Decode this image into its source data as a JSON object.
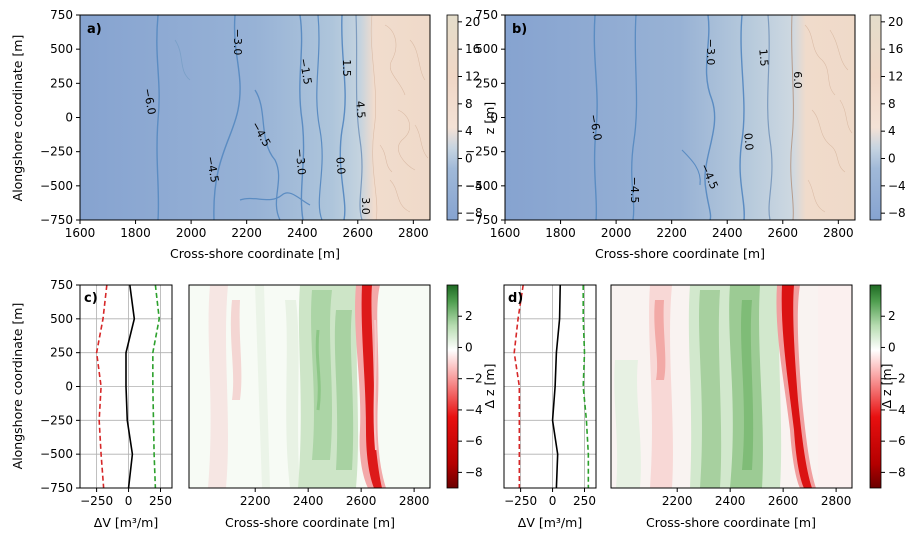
{
  "chart_data": [
    {
      "panel": "a)",
      "type": "heatmap",
      "subtype": "filled-contour bathymetry map",
      "xlabel": "Cross-shore coordinate [m]",
      "ylabel": "Alongshore coordinate [m]",
      "xlim": [
        1600,
        2860
      ],
      "ylim": [
        -750,
        750
      ],
      "xticks": [
        "1600",
        "1800",
        "2000",
        "2200",
        "2400",
        "2600",
        "2800"
      ],
      "yticks": [
        "750",
        "500",
        "250",
        "0",
        "−250",
        "−500",
        "−750"
      ],
      "colorbar": {
        "label": "z [m]",
        "ticks": [
          "20",
          "16",
          "12",
          "8",
          "4",
          "0",
          "−4",
          "−8"
        ],
        "range": [
          -9,
          21
        ]
      },
      "contour_levels": [
        -6.0,
        -4.5,
        -3.0,
        -1.5,
        0.0,
        1.5,
        3.0,
        4.5,
        6.0
      ],
      "contour_labels": [
        "−3.0",
        "−1.5",
        "1.5",
        "−6.0",
        "4.5",
        "−4.5",
        "−4.5",
        "−3.0",
        "0.0",
        "3.0"
      ]
    },
    {
      "panel": "b)",
      "type": "heatmap",
      "subtype": "filled-contour bathymetry map",
      "xlabel": "Cross-shore coordinate [m]",
      "xlim": [
        1600,
        2860
      ],
      "ylim": [
        -750,
        750
      ],
      "xticks": [
        "1600",
        "1800",
        "2000",
        "2200",
        "2400",
        "2600",
        "2800"
      ],
      "colorbar": {
        "label": "z [m]",
        "ticks": [
          "20",
          "16",
          "12",
          "8",
          "4",
          "0",
          "−4",
          "−8"
        ],
        "range": [
          -9,
          21
        ]
      },
      "contour_labels": [
        "−3.0",
        "1.5",
        "6.0",
        "−6.0",
        "0.0",
        "−4.5",
        "−4.5"
      ]
    },
    {
      "panel": "c)",
      "type": "line",
      "xlabel": "ΔV [m³/m]",
      "ylabel": "Alongshore coordinate [m]",
      "xticks": [
        "−250",
        "0",
        "250"
      ],
      "yticks": [
        "750",
        "500",
        "250",
        "0",
        "−250",
        "−500",
        "−750"
      ],
      "ylim": [
        -750,
        750
      ],
      "series": [
        {
          "color": "#000000",
          "style": "solid",
          "y": [
            750,
            500,
            250,
            0,
            -250,
            -500,
            -750
          ],
          "x": [
            10,
            45,
            -20,
            -20,
            -10,
            30,
            0
          ]
        },
        {
          "color": "#d62728",
          "style": "dashed",
          "y": [
            750,
            500,
            250,
            0,
            -250,
            -500,
            -750
          ],
          "x": [
            -170,
            -200,
            -250,
            -215,
            -230,
            -215,
            -195
          ]
        },
        {
          "color": "#2ca02c",
          "style": "dashed",
          "y": [
            750,
            500,
            250,
            0,
            -250,
            -500,
            -750
          ],
          "x": [
            210,
            240,
            190,
            190,
            195,
            200,
            210
          ]
        }
      ]
    },
    {
      "panel": "c)",
      "type": "heatmap",
      "subtype": "bed level change map",
      "xlabel": "Cross-shore coordinate [m]",
      "xticks": [
        "2200",
        "2400",
        "2600",
        "2800"
      ],
      "xlim": [
        1950,
        2860
      ],
      "ylim": [
        -750,
        750
      ],
      "colorbar": {
        "label": "Δ z [m]",
        "ticks": [
          "2",
          "0",
          "−2",
          "−4",
          "−6",
          "−8"
        ],
        "range": [
          -9,
          4
        ]
      }
    },
    {
      "panel": "d)",
      "type": "line",
      "xlabel": "ΔV [m³/m]",
      "xticks": [
        "−250",
        "0",
        "250"
      ],
      "ylim": [
        -750,
        750
      ],
      "series": [
        {
          "color": "#000000",
          "style": "solid",
          "y": [
            750,
            500,
            250,
            0,
            -250,
            -500,
            -750
          ],
          "x": [
            60,
            55,
            30,
            20,
            0,
            40,
            30
          ]
        },
        {
          "color": "#d62728",
          "style": "dashed",
          "y": [
            750,
            500,
            250,
            0,
            -250,
            -500,
            -750
          ],
          "x": [
            -230,
            -270,
            -300,
            -260,
            -260,
            -260,
            -260
          ]
        },
        {
          "color": "#2ca02c",
          "style": "dashed",
          "y": [
            750,
            500,
            250,
            0,
            -250,
            -500,
            -750
          ],
          "x": [
            240,
            240,
            250,
            240,
            265,
            280,
            280
          ]
        }
      ]
    },
    {
      "panel": "d)",
      "type": "heatmap",
      "subtype": "bed level change map",
      "xlabel": "Cross-shore coordinate [m]",
      "xticks": [
        "2200",
        "2400",
        "2600",
        "2800"
      ],
      "xlim": [
        1950,
        2860
      ],
      "ylim": [
        -750,
        750
      ],
      "colorbar": {
        "label": "Δ z [m]",
        "ticks": [
          "2",
          "0",
          "−2",
          "−4",
          "−6",
          "−8"
        ],
        "range": [
          -9,
          4
        ]
      }
    }
  ],
  "colors": {
    "deep": "#8aa6d1",
    "mid": "#a6bfd8",
    "shallow": "#c7d6e2",
    "beach": "#f1dccd",
    "dune": "#eadfce",
    "contour": "#5b8cc2",
    "erosion": "#d80f0f",
    "accretion": "#2a8a3a"
  }
}
